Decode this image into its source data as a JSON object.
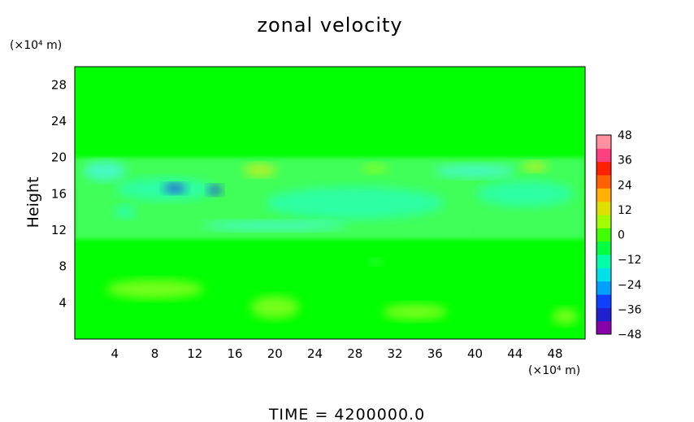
{
  "chart_data": {
    "type": "heatmap",
    "title": "zonal velocity",
    "xlabel": "",
    "ylabel": "Height",
    "x_unit": "(×10⁴ m)",
    "y_unit": "(×10⁴ m)",
    "x_ticks": [
      4,
      8,
      12,
      16,
      20,
      24,
      28,
      32,
      36,
      40,
      44,
      48
    ],
    "y_ticks": [
      4,
      8,
      12,
      16,
      20,
      24,
      28
    ],
    "xlim": [
      0,
      51
    ],
    "ylim": [
      0,
      30
    ],
    "colorbar": {
      "ticks": [
        48,
        36,
        24,
        12,
        0,
        -12,
        -24,
        -36,
        -48
      ],
      "range": [
        -48,
        48
      ]
    },
    "background_value": 0,
    "features": [
      {
        "region": "jet band",
        "x_range": [
          0,
          51
        ],
        "y_range": [
          11,
          20
        ],
        "value": -12
      },
      {
        "region": "blue core",
        "x": 10,
        "y": 16.6,
        "value": -30
      },
      {
        "region": "blue core",
        "x": 14,
        "y": 16.4,
        "value": -30
      },
      {
        "region": "cyan band",
        "x_range": [
          18,
          38
        ],
        "y_range": [
          12.5,
          17
        ],
        "value": -18
      },
      {
        "region": "yellow patch",
        "x": 18.5,
        "y": 18.5,
        "value": 14
      },
      {
        "region": "yellow patch",
        "x": 46,
        "y": 19,
        "value": 12
      }
    ],
    "footer": "TIME  =  4200000.0"
  },
  "colors": {
    "field": "#00ff00",
    "light_green": "#40ff58",
    "cyan": "#2affb0",
    "light_cyan": "#48f8d8",
    "blue": "#2040e8",
    "yellow_green": "#88ff20",
    "yellow": "#c8f020"
  }
}
